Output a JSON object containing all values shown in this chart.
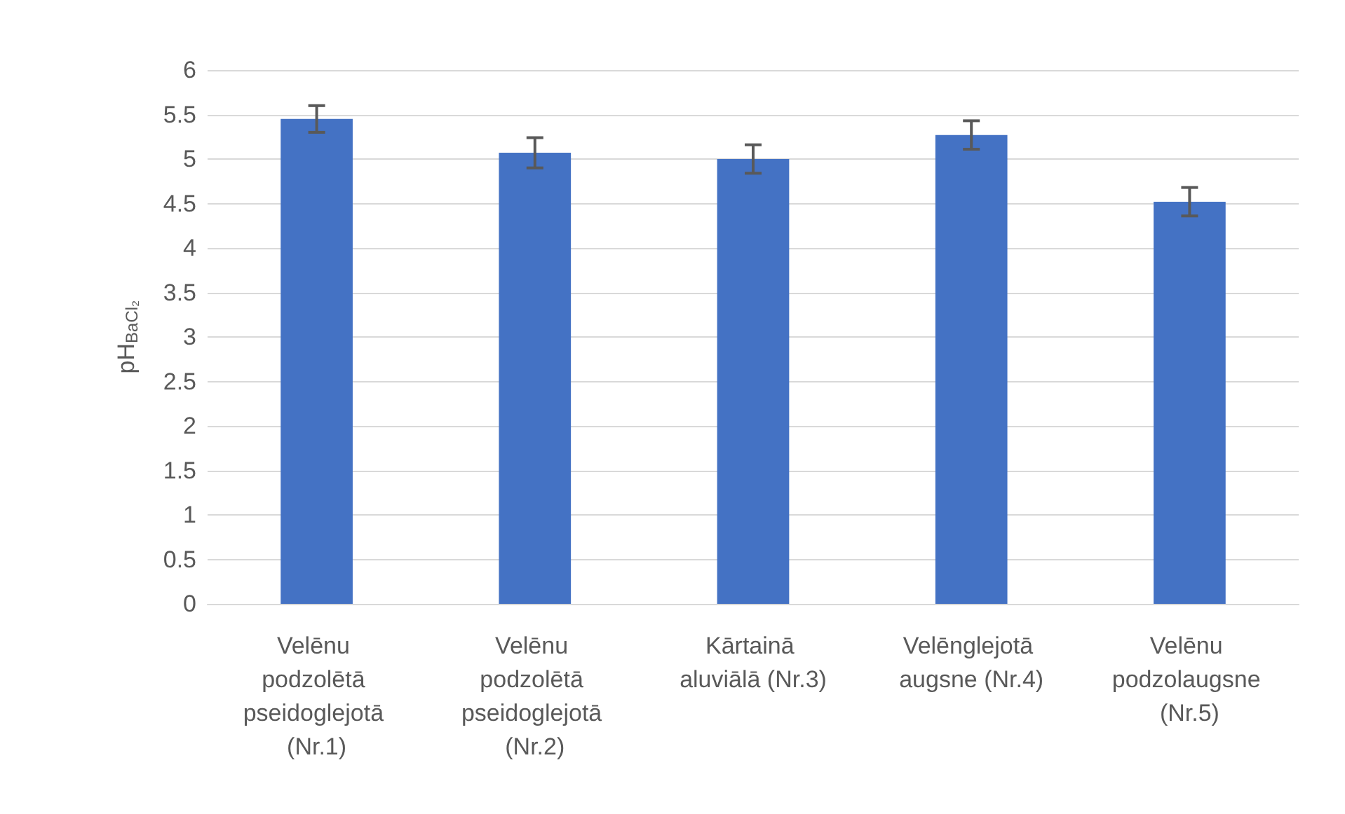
{
  "chart_data": {
    "type": "bar",
    "ylabel": "pH$_{BaCl₂}$",
    "categories": [
      "Velēnu podzolētā pseidoglejotā (Nr.1)",
      "Velēnu podzolētā pseidoglejotā (Nr.2)",
      "Kārtainā aluviālā (Nr.3)",
      "Velēnglejotā augsne (Nr.4)",
      "Velēnu podzolaugsne (Nr.5)"
    ],
    "values": [
      5.45,
      5.07,
      5.0,
      5.27,
      4.52
    ],
    "errors": [
      0.15,
      0.17,
      0.16,
      0.16,
      0.16
    ],
    "color": "#4472c4",
    "ylim": [
      0,
      6
    ],
    "yticks": [
      0,
      0.5,
      1,
      1.5,
      2,
      2.5,
      3,
      3.5,
      4,
      4.5,
      5,
      5.5,
      6
    ],
    "grid": "y"
  }
}
